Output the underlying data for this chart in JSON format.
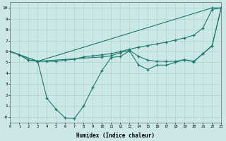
{
  "xlabel": "Humidex (Indice chaleur)",
  "bg_color": "#cce8e6",
  "grid_color": "#aad4d0",
  "line_color": "#1a7a6e",
  "xlim": [
    0,
    23
  ],
  "ylim": [
    -0.5,
    10.5
  ],
  "xtick_vals": [
    0,
    1,
    2,
    3,
    4,
    5,
    6,
    7,
    8,
    9,
    10,
    11,
    12,
    13,
    14,
    15,
    16,
    17,
    18,
    19,
    20,
    21,
    22,
    23
  ],
  "ytick_vals": [
    0,
    1,
    2,
    3,
    4,
    5,
    6,
    7,
    8,
    9,
    10
  ],
  "ytick_labels": [
    "-0",
    "1",
    "2",
    "3",
    "4",
    "5",
    "6",
    "7",
    "8",
    "9",
    "10"
  ],
  "lines": [
    {
      "x": [
        0,
        3,
        22,
        23
      ],
      "y": [
        6.0,
        5.1,
        10.0,
        10.0
      ]
    },
    {
      "x": [
        0,
        1,
        2,
        3,
        4,
        5,
        6,
        7,
        8,
        9,
        10,
        11,
        12,
        13,
        14,
        15,
        16,
        17,
        18,
        19,
        20,
        21,
        22,
        23
      ],
      "y": [
        6.0,
        5.7,
        5.2,
        5.1,
        5.1,
        5.1,
        5.2,
        5.3,
        5.5,
        5.6,
        5.7,
        5.8,
        6.0,
        6.2,
        6.4,
        6.55,
        6.7,
        6.85,
        7.05,
        7.25,
        7.5,
        8.15,
        9.85,
        10.0
      ]
    },
    {
      "x": [
        0,
        1,
        2,
        3,
        10,
        11,
        12,
        13,
        14,
        15,
        16,
        17,
        18,
        19,
        20,
        21,
        22,
        23
      ],
      "y": [
        6.0,
        5.7,
        5.2,
        5.1,
        5.5,
        5.6,
        5.9,
        6.1,
        5.55,
        5.2,
        5.1,
        5.1,
        5.1,
        5.25,
        5.1,
        5.8,
        6.55,
        10.0
      ]
    },
    {
      "x": [
        0,
        3,
        4,
        5,
        6,
        7,
        8,
        9,
        10,
        11,
        12,
        13,
        14,
        15,
        16,
        17,
        18,
        19,
        20,
        21,
        22,
        23
      ],
      "y": [
        6.0,
        5.1,
        1.7,
        0.7,
        -0.1,
        -0.15,
        1.0,
        2.7,
        4.25,
        5.45,
        5.55,
        6.05,
        4.75,
        4.35,
        4.75,
        4.75,
        5.0,
        5.25,
        5.05,
        5.8,
        6.5,
        10.0
      ]
    }
  ]
}
